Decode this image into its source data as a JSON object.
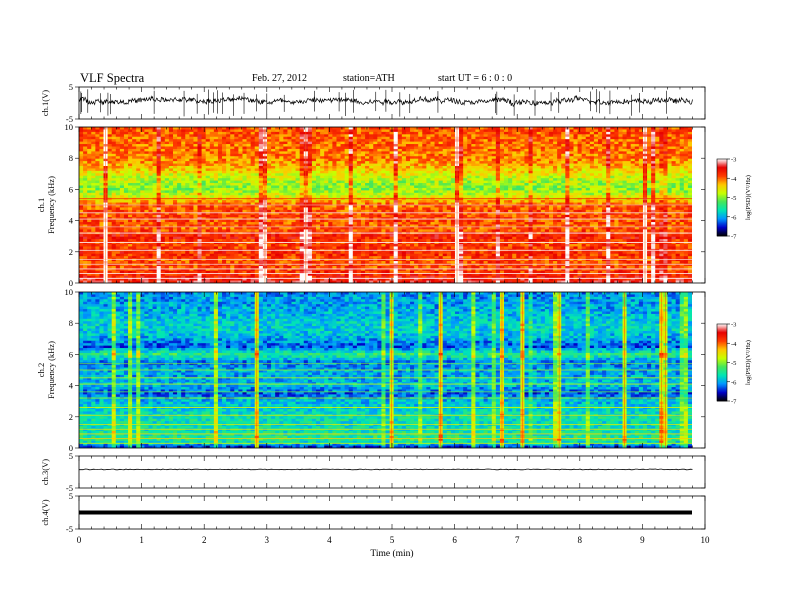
{
  "header": {
    "title": "VLF  Spectra",
    "date": "Feb. 27, 2012",
    "station": "station=ATH",
    "start": "start  UT  =   6  : 0  : 0"
  },
  "chart_data": [
    {
      "type": "line",
      "name": "ch1_waveform",
      "ylabel": "ch.1(V)",
      "ylim": [
        -5,
        5
      ],
      "yticks": [
        "5",
        "-5"
      ],
      "x_range_min": [
        0,
        9.8
      ],
      "description_values": {
        "mean_level": 0.8,
        "noise_amplitude": 1.5
      }
    },
    {
      "type": "heatmap",
      "name": "ch1_spectrogram",
      "ylabel": "ch.1\nFrequency  (kHz)",
      "ylim": [
        0,
        10
      ],
      "yticks": [
        "0",
        "2",
        "4",
        "6",
        "8",
        "10"
      ],
      "xlim_min": [
        0,
        9.8
      ],
      "colorbar": {
        "label": "log(PSD)(V²/Hz)",
        "range": [
          -7,
          -3
        ],
        "ticks": [
          "-7",
          "-6",
          "-5",
          "-4",
          "-3"
        ]
      },
      "level_by_frequency_kHz": [
        [
          0.0,
          -3.4
        ],
        [
          0.5,
          -3.7
        ],
        [
          1.0,
          -3.9
        ],
        [
          1.5,
          -3.9
        ],
        [
          2.0,
          -3.7
        ],
        [
          2.5,
          -3.9
        ],
        [
          3.0,
          -3.6
        ],
        [
          3.5,
          -4.0
        ],
        [
          4.0,
          -3.9
        ],
        [
          4.5,
          -3.9
        ],
        [
          5.0,
          -4.0
        ],
        [
          5.5,
          -4.6
        ],
        [
          6.0,
          -5.0
        ],
        [
          6.5,
          -4.9
        ],
        [
          7.0,
          -4.6
        ],
        [
          7.5,
          -4.3
        ],
        [
          8.0,
          -4.1
        ],
        [
          9.0,
          -4.0
        ],
        [
          10.0,
          -3.9
        ]
      ]
    },
    {
      "type": "heatmap",
      "name": "ch2_spectrogram",
      "ylabel": "ch.2\nFrequency  (kHz)",
      "ylim": [
        0,
        10
      ],
      "yticks": [
        "0",
        "2",
        "4",
        "6",
        "8",
        "10"
      ],
      "xlim_min": [
        0,
        9.8
      ],
      "colorbar": {
        "label": "log(PSD)(V²/Hz)",
        "range": [
          -7,
          -3
        ],
        "ticks": [
          "-7",
          "-6",
          "-5",
          "-4",
          "-3"
        ]
      },
      "level_by_frequency_kHz": [
        [
          0.0,
          -6.6
        ],
        [
          0.5,
          -5.4
        ],
        [
          1.0,
          -5.6
        ],
        [
          1.5,
          -5.7
        ],
        [
          2.0,
          -5.6
        ],
        [
          2.5,
          -5.8
        ],
        [
          3.0,
          -5.9
        ],
        [
          3.5,
          -6.3
        ],
        [
          4.0,
          -5.9
        ],
        [
          4.5,
          -6.0
        ],
        [
          5.0,
          -6.0
        ],
        [
          5.5,
          -6.2
        ],
        [
          6.0,
          -5.4
        ],
        [
          6.5,
          -6.3
        ],
        [
          7.0,
          -6.0
        ],
        [
          7.5,
          -5.8
        ],
        [
          8.0,
          -5.8
        ],
        [
          9.0,
          -6.0
        ],
        [
          10.0,
          -6.1
        ]
      ]
    },
    {
      "type": "line",
      "name": "ch3_waveform",
      "ylabel": "ch.3(V)",
      "ylim": [
        -5,
        5
      ],
      "yticks": [
        "5",
        "-5"
      ],
      "level": 0.8
    },
    {
      "type": "line",
      "name": "ch4_waveform",
      "ylabel": "ch.4(V)",
      "ylim": [
        -5,
        5
      ],
      "yticks": [
        "5",
        "-5"
      ],
      "level": 0.0
    }
  ],
  "x_axis": {
    "label": "Time  (min)",
    "xlim": [
      0,
      10
    ],
    "ticks": [
      "0",
      "1",
      "2",
      "3",
      "4",
      "5",
      "6",
      "7",
      "8",
      "9",
      "10"
    ]
  },
  "colors": {
    "colormap": [
      "#000000",
      "#0000c8",
      "#0096ff",
      "#00e6b4",
      "#46e65a",
      "#c8ff00",
      "#ffc800",
      "#ff3c00",
      "#e60000",
      "#ffffff"
    ]
  }
}
